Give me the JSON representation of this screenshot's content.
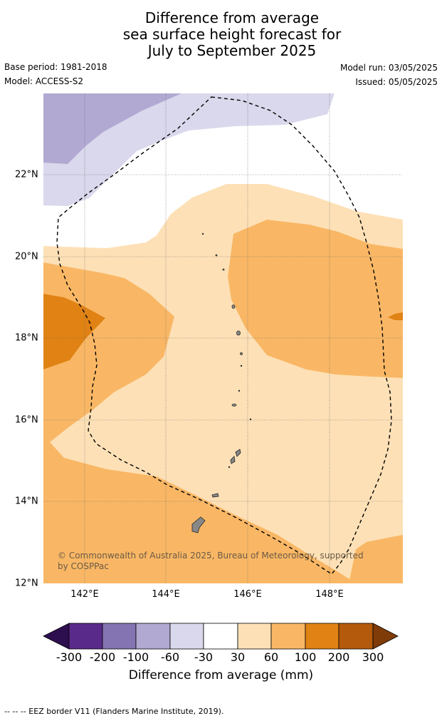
{
  "header": {
    "title_lines": [
      "Difference from average",
      "sea surface height forecast for",
      "July to September 2025"
    ],
    "base_period": "Base period: 1981-2018",
    "model": "Model: ACCESS-S2",
    "model_run": "Model run: 03/05/2025",
    "issued": "Issued: 05/05/2025"
  },
  "map": {
    "x_ticks": [
      "142°E",
      "144°E",
      "146°E",
      "148°E"
    ],
    "y_ticks": [
      "22°N",
      "20°N",
      "18°N",
      "16°N",
      "14°N",
      "12°N"
    ],
    "copyright": "© Commonwealth of Australia 2025, Bureau of Meteorology, supported by COSPPac",
    "eez_border_style": "dashed"
  },
  "colorbar": {
    "labels": [
      "-300",
      "-200",
      "-100",
      "-60",
      "-30",
      "30",
      "60",
      "100",
      "200",
      "300"
    ],
    "title": "Difference from average (mm)",
    "colors": [
      "#2d0f4f",
      "#5a2a8a",
      "#8574b2",
      "#b1a9d2",
      "#d9d8ec",
      "#ffffff",
      "#fde0b6",
      "#f9b765",
      "#e08214",
      "#b35a0c",
      "#7f3b08"
    ]
  },
  "footer": {
    "legend_text": "--  --  -- EEZ border V11 (Flanders Marine Institute, 2019)."
  }
}
